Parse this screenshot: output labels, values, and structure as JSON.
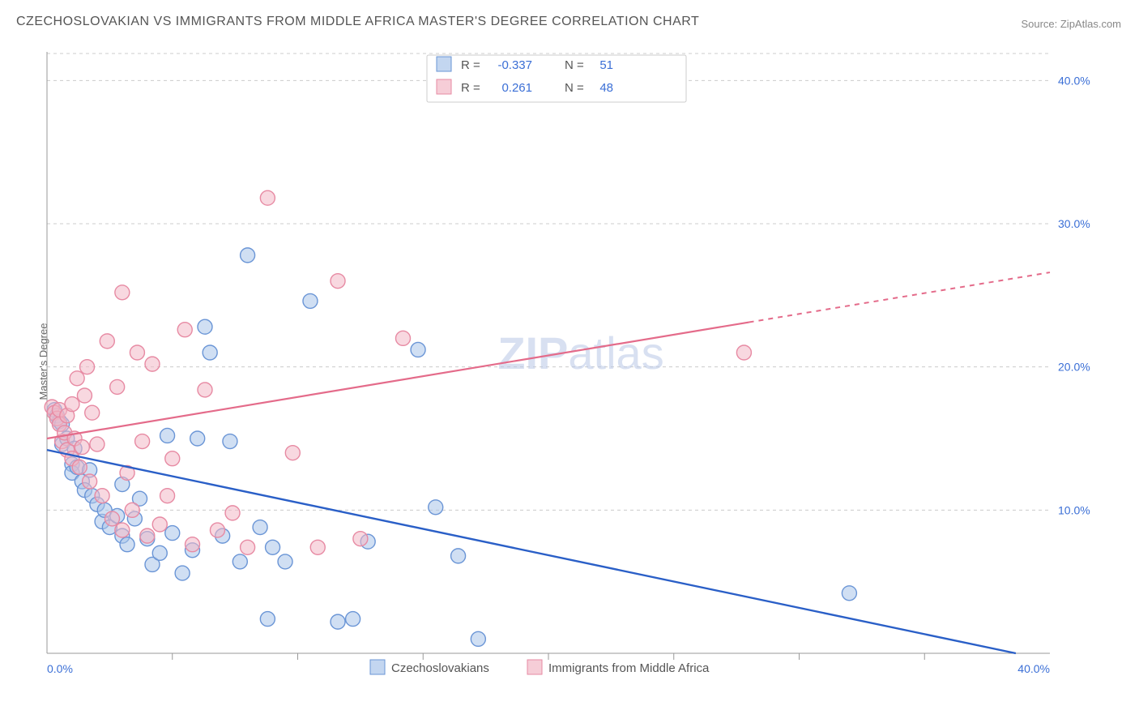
{
  "title": "CZECHOSLOVAKIAN VS IMMIGRANTS FROM MIDDLE AFRICA MASTER'S DEGREE CORRELATION CHART",
  "source": "Source: ZipAtlas.com",
  "ylabel": "Master's Degree",
  "watermark_a": "ZIP",
  "watermark_b": "atlas",
  "chart": {
    "type": "scatter-with-regression",
    "xlim": [
      0,
      40
    ],
    "ylim": [
      0,
      42
    ],
    "xtick_labels": [
      "0.0%",
      "40.0%"
    ],
    "ytick_values": [
      10,
      20,
      30,
      40
    ],
    "ytick_labels": [
      "10.0%",
      "20.0%",
      "30.0%",
      "40.0%"
    ],
    "grid_color": "#cccccc",
    "axis_color": "#999999",
    "background_color": "#ffffff",
    "series": [
      {
        "name": "Czechoslovakians",
        "color_fill": "#a9c4ea",
        "color_stroke": "#6a95d6",
        "fill_opacity": 0.55,
        "line_color": "#2a5fc7",
        "marker_radius": 9,
        "R": "-0.337",
        "N": "51",
        "trend": {
          "x1": 0,
          "y1": 14.2,
          "x2": 40,
          "y2": -0.5
        },
        "points": [
          [
            0.3,
            17.0
          ],
          [
            0.4,
            16.6
          ],
          [
            0.5,
            16.2
          ],
          [
            0.6,
            16.0
          ],
          [
            0.6,
            14.6
          ],
          [
            0.8,
            15.0
          ],
          [
            1.0,
            13.2
          ],
          [
            1.0,
            12.6
          ],
          [
            1.1,
            14.3
          ],
          [
            1.2,
            13.0
          ],
          [
            1.4,
            12.0
          ],
          [
            1.5,
            11.4
          ],
          [
            1.7,
            12.8
          ],
          [
            1.8,
            11.0
          ],
          [
            2.0,
            10.4
          ],
          [
            2.2,
            9.2
          ],
          [
            2.3,
            10.0
          ],
          [
            2.5,
            8.8
          ],
          [
            2.8,
            9.6
          ],
          [
            3.0,
            11.8
          ],
          [
            3.0,
            8.2
          ],
          [
            3.2,
            7.6
          ],
          [
            3.5,
            9.4
          ],
          [
            3.7,
            10.8
          ],
          [
            4.0,
            8.0
          ],
          [
            4.2,
            6.2
          ],
          [
            4.5,
            7.0
          ],
          [
            4.8,
            15.2
          ],
          [
            5.0,
            8.4
          ],
          [
            5.4,
            5.6
          ],
          [
            5.8,
            7.2
          ],
          [
            6.0,
            15.0
          ],
          [
            6.3,
            22.8
          ],
          [
            6.5,
            21.0
          ],
          [
            7.0,
            8.2
          ],
          [
            7.3,
            14.8
          ],
          [
            7.7,
            6.4
          ],
          [
            8.0,
            27.8
          ],
          [
            8.5,
            8.8
          ],
          [
            8.8,
            2.4
          ],
          [
            9.0,
            7.4
          ],
          [
            9.5,
            6.4
          ],
          [
            10.5,
            24.6
          ],
          [
            11.6,
            2.2
          ],
          [
            12.2,
            2.4
          ],
          [
            12.8,
            7.8
          ],
          [
            14.8,
            21.2
          ],
          [
            15.5,
            10.2
          ],
          [
            16.4,
            6.8
          ],
          [
            17.2,
            1.0
          ],
          [
            32.0,
            4.2
          ]
        ]
      },
      {
        "name": "Immigrants from Middle Africa",
        "color_fill": "#f2b8c6",
        "color_stroke": "#e78aa3",
        "fill_opacity": 0.55,
        "line_color": "#e46b8a",
        "marker_radius": 9,
        "R": "0.261",
        "N": "48",
        "trend": {
          "x1": 0,
          "y1": 15.0,
          "x2": 40,
          "y2": 26.6,
          "dash_from_x": 28
        },
        "points": [
          [
            0.2,
            17.2
          ],
          [
            0.3,
            16.8
          ],
          [
            0.4,
            16.4
          ],
          [
            0.5,
            17.0
          ],
          [
            0.5,
            16.0
          ],
          [
            0.6,
            14.8
          ],
          [
            0.7,
            15.4
          ],
          [
            0.8,
            16.6
          ],
          [
            0.8,
            14.2
          ],
          [
            1.0,
            17.4
          ],
          [
            1.0,
            13.6
          ],
          [
            1.1,
            15.0
          ],
          [
            1.2,
            19.2
          ],
          [
            1.3,
            13.0
          ],
          [
            1.4,
            14.4
          ],
          [
            1.5,
            18.0
          ],
          [
            1.6,
            20.0
          ],
          [
            1.7,
            12.0
          ],
          [
            1.8,
            16.8
          ],
          [
            2.0,
            14.6
          ],
          [
            2.2,
            11.0
          ],
          [
            2.4,
            21.8
          ],
          [
            2.6,
            9.4
          ],
          [
            2.8,
            18.6
          ],
          [
            3.0,
            8.6
          ],
          [
            3.0,
            25.2
          ],
          [
            3.2,
            12.6
          ],
          [
            3.4,
            10.0
          ],
          [
            3.6,
            21.0
          ],
          [
            3.8,
            14.8
          ],
          [
            4.0,
            8.2
          ],
          [
            4.2,
            20.2
          ],
          [
            4.5,
            9.0
          ],
          [
            4.8,
            11.0
          ],
          [
            5.0,
            13.6
          ],
          [
            5.5,
            22.6
          ],
          [
            5.8,
            7.6
          ],
          [
            6.3,
            18.4
          ],
          [
            6.8,
            8.6
          ],
          [
            7.4,
            9.8
          ],
          [
            8.0,
            7.4
          ],
          [
            8.8,
            31.8
          ],
          [
            9.8,
            14.0
          ],
          [
            10.8,
            7.4
          ],
          [
            11.6,
            26.0
          ],
          [
            12.5,
            8.0
          ],
          [
            14.2,
            22.0
          ],
          [
            27.8,
            21.0
          ]
        ]
      }
    ]
  },
  "top_legend": {
    "R_label": "R =",
    "N_label": "N ="
  },
  "bottom_legend": {
    "items": [
      "Czechoslovakians",
      "Immigrants from Middle Africa"
    ]
  }
}
